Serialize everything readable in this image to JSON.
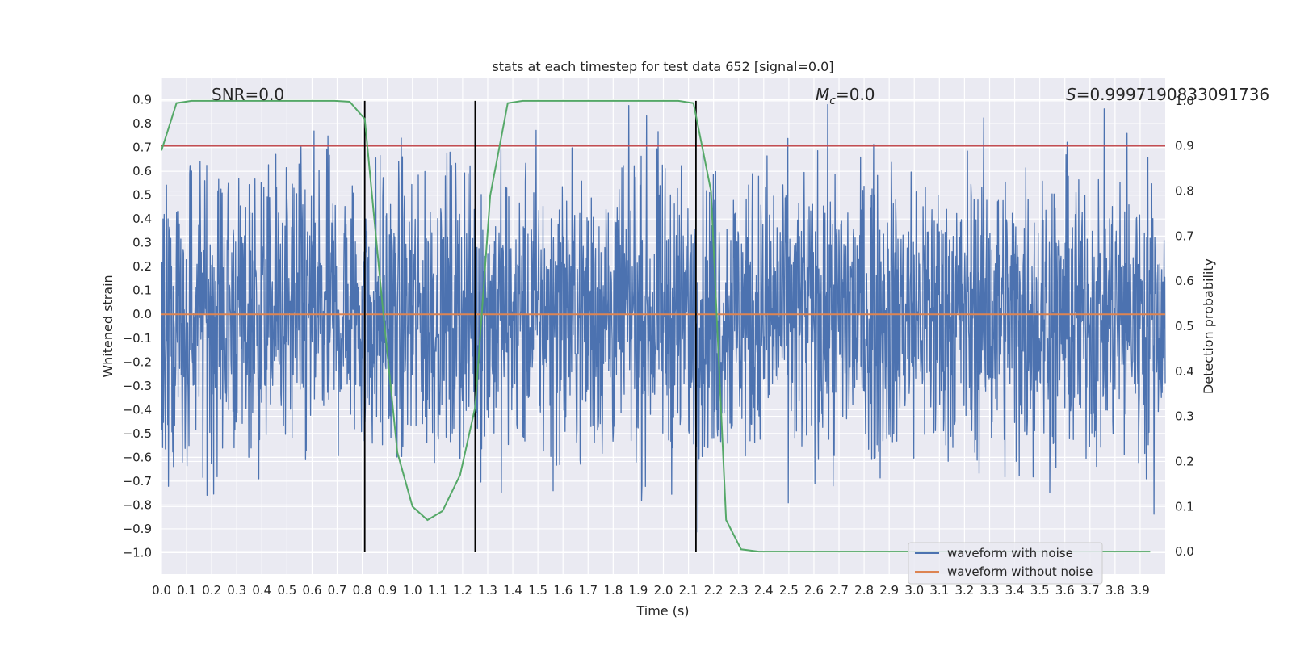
{
  "chart_data": {
    "type": "line",
    "title": "stats at each timestep for test data 652 [signal=0.0]",
    "xlabel": "Time (s)",
    "ylabel": "Whitened strain",
    "y2label": "Detection probability",
    "xlim": [
      0.0,
      4.0
    ],
    "ylim": [
      -1.09,
      0.99
    ],
    "y2lim": [
      -0.05,
      1.05
    ],
    "xticks": [
      "0.0",
      "0.1",
      "0.2",
      "0.3",
      "0.4",
      "0.5",
      "0.6",
      "0.7",
      "0.8",
      "0.9",
      "1.0",
      "1.1",
      "1.2",
      "1.3",
      "1.4",
      "1.5",
      "1.6",
      "1.7",
      "1.8",
      "1.9",
      "2.0",
      "2.1",
      "2.2",
      "2.3",
      "2.4",
      "2.5",
      "2.6",
      "2.7",
      "2.8",
      "2.9",
      "3.0",
      "3.1",
      "3.2",
      "3.3",
      "3.4",
      "3.5",
      "3.6",
      "3.7",
      "3.8",
      "3.9"
    ],
    "yticks": [
      "0.9",
      "0.8",
      "0.7",
      "0.6",
      "0.5",
      "0.4",
      "0.3",
      "0.2",
      "0.1",
      "0.0",
      "−0.1",
      "−0.2",
      "−0.3",
      "−0.4",
      "−0.5",
      "−0.6",
      "−0.7",
      "−0.8",
      "−0.9",
      "−1.0"
    ],
    "y2ticks": [
      "1.0",
      "0.9",
      "0.8",
      "0.7",
      "0.6",
      "0.5",
      "0.4",
      "0.3",
      "0.2",
      "0.1",
      "0.0"
    ],
    "annotations": {
      "snr": "SNR=0.0",
      "mc_symbol": "M",
      "mc_sub": "c",
      "mc_value": "=0.0",
      "s_symbol": "S",
      "s_value": "=0.9997190833091736"
    },
    "threshold": 0.9,
    "vertical_lines": [
      0.81,
      1.25,
      2.13
    ],
    "noise_amplitude": 0.3,
    "series": [
      {
        "name": "waveform with noise",
        "color": "#4c72b0",
        "axis": "left",
        "note": "noise samples"
      },
      {
        "name": "waveform without noise",
        "color": "#dd8452",
        "axis": "left",
        "x": [
          0.0,
          4.0
        ],
        "y": [
          0.0,
          0.0
        ]
      },
      {
        "name": "Detection probability",
        "color": "#55a868",
        "axis": "right",
        "x": [
          0.0,
          0.06,
          0.12,
          0.19,
          0.25,
          0.31,
          0.38,
          0.44,
          0.5,
          0.56,
          0.62,
          0.69,
          0.75,
          0.81,
          0.88,
          0.94,
          1.0,
          1.06,
          1.12,
          1.19,
          1.25,
          1.31,
          1.38,
          1.44,
          1.5,
          1.56,
          1.62,
          1.69,
          1.75,
          1.81,
          1.88,
          1.94,
          2.0,
          2.06,
          2.12,
          2.19,
          2.25,
          2.31,
          2.38,
          2.44,
          2.5,
          2.56,
          2.62,
          2.69,
          2.75,
          2.81,
          2.88,
          2.94,
          3.0,
          3.06,
          3.12,
          3.19,
          3.25,
          3.31,
          3.38,
          3.44,
          3.5,
          3.56,
          3.62,
          3.69,
          3.75,
          3.81,
          3.88,
          3.94
        ],
        "y": [
          0.89,
          0.995,
          1.0,
          1.0,
          1.0,
          1.0,
          1.0,
          1.0,
          1.0,
          1.0,
          1.0,
          1.0,
          0.998,
          0.96,
          0.55,
          0.22,
          0.1,
          0.07,
          0.09,
          0.17,
          0.32,
          0.79,
          0.995,
          1.0,
          1.0,
          1.0,
          1.0,
          1.0,
          1.0,
          1.0,
          1.0,
          1.0,
          1.0,
          1.0,
          0.995,
          0.8,
          0.07,
          0.005,
          0.0,
          0.0,
          0.0,
          0.0,
          0.0,
          0.0,
          0.0,
          0.0,
          0.0,
          0.0,
          0.0,
          0.0,
          0.0,
          0.0,
          0.0,
          0.0,
          0.0,
          0.0,
          0.0,
          0.0,
          0.0,
          0.0,
          0.0,
          0.0,
          0.0,
          0.0
        ]
      },
      {
        "name": "threshold",
        "color": "#c44e52",
        "axis": "right"
      }
    ],
    "legend": {
      "position": "lower-right",
      "entries": [
        {
          "label": "waveform with noise",
          "color": "#4c72b0"
        },
        {
          "label": "waveform without noise",
          "color": "#dd8452"
        }
      ]
    }
  }
}
